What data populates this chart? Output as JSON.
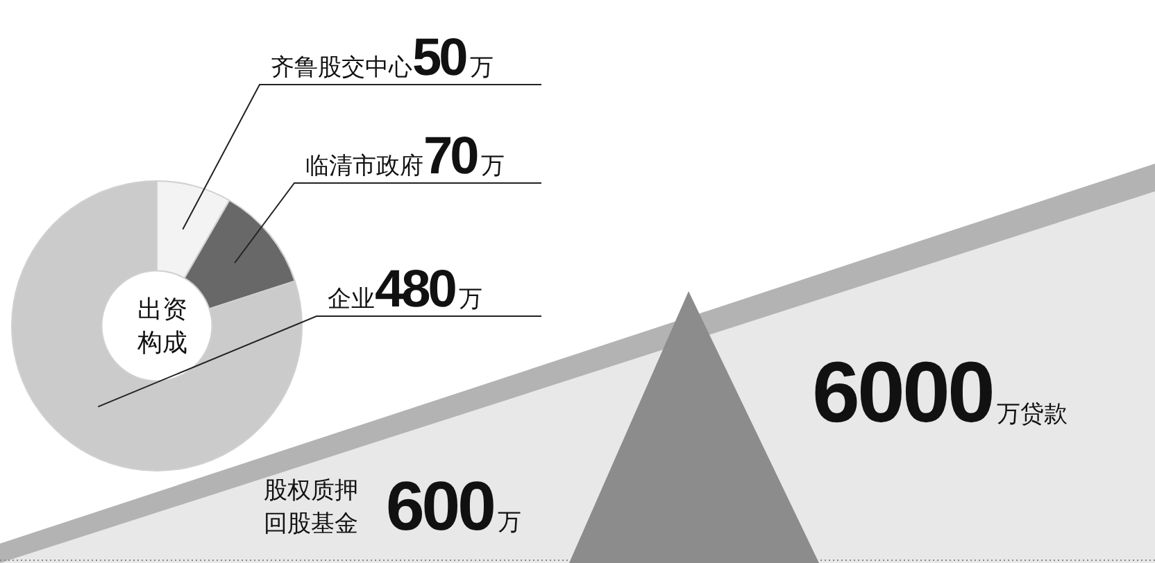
{
  "chart_data": {
    "type": "donut",
    "title": "出资构成",
    "categories": [
      "齐鲁股交中心",
      "临清市政府",
      "企业"
    ],
    "values": [
      50,
      70,
      480
    ],
    "value_labels": [
      "50万",
      "70万",
      "480万"
    ],
    "colors": [
      "#f3f3f3",
      "#686868",
      "#cbcbcb"
    ],
    "legend": false,
    "annotations": [
      "股权质押回股基金",
      "600万",
      "6000万贷款"
    ]
  }
}
